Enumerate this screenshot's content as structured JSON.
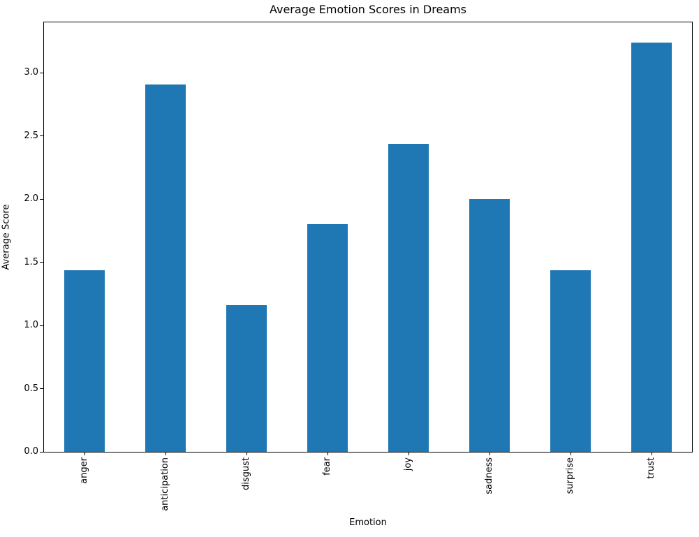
{
  "chart_data": {
    "type": "bar",
    "title": "Average Emotion Scores in Dreams",
    "xlabel": "Emotion",
    "ylabel": "Average Score",
    "categories": [
      "anger",
      "anticipation",
      "disgust",
      "fear",
      "joy",
      "sadness",
      "surprise",
      "trust"
    ],
    "values": [
      1.44,
      2.91,
      1.16,
      1.8,
      2.44,
      2.0,
      1.44,
      3.24
    ],
    "series": [
      {
        "name": "Average Score",
        "values": [
          1.44,
          2.91,
          1.16,
          1.8,
          2.44,
          2.0,
          1.44,
          3.24
        ]
      }
    ],
    "ylim": [
      0,
      3.4
    ],
    "yticks": [
      0.0,
      0.5,
      1.0,
      1.5,
      2.0,
      2.5,
      3.0
    ],
    "ytick_labels": [
      "0.0",
      "0.5",
      "1.0",
      "1.5",
      "2.0",
      "2.5",
      "3.0"
    ],
    "bar_color": "#1f77b4",
    "bar_width_fraction": 0.5,
    "xtick_rotation_deg": 90,
    "grid": false,
    "legend_position": "none"
  }
}
